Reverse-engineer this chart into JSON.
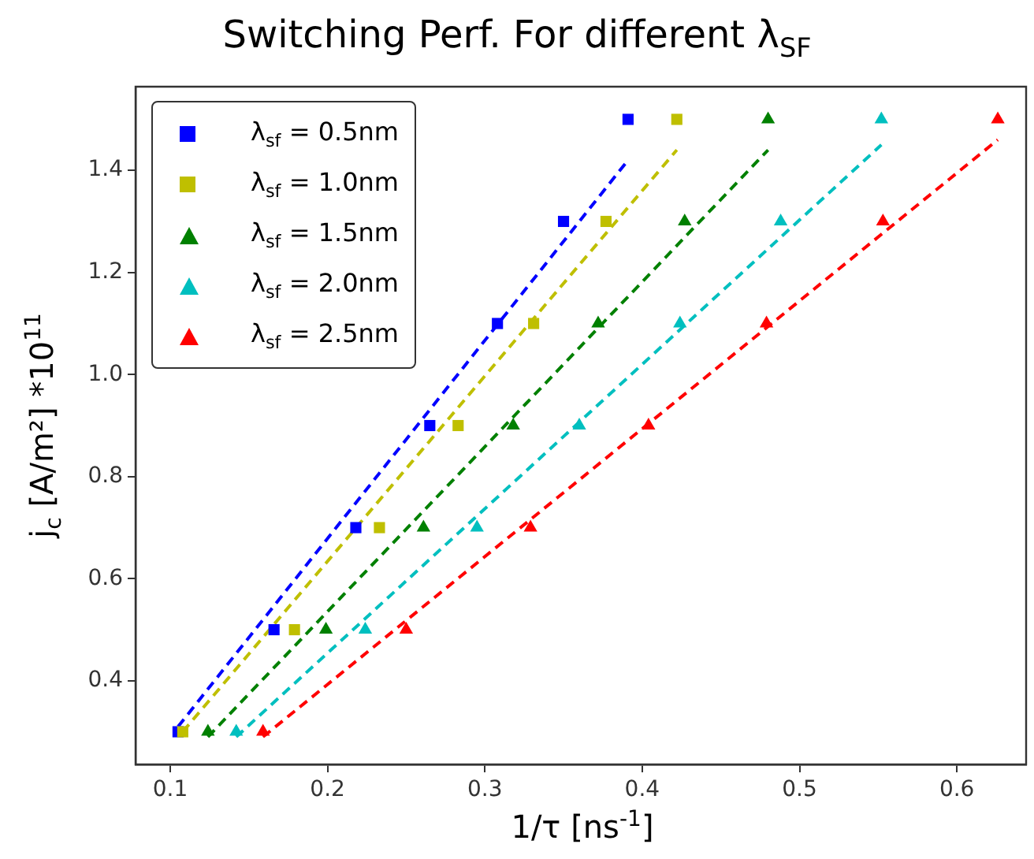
{
  "chart_data": {
    "type": "scatter",
    "title": "Switching Perf. For different λ$_{SF}$",
    "xlabel": "1/τ [ns$^{-1}$]",
    "ylabel": "j$_{c}$ [A/m²] *10$^{11}$",
    "xlim": [
      0.078,
      0.644
    ],
    "ylim": [
      0.236,
      1.564
    ],
    "xticks": [
      0.1,
      0.2,
      0.3,
      0.4,
      0.5,
      0.6
    ],
    "yticks": [
      0.4,
      0.6,
      0.8,
      {
        "value": 1,
        "label": "1.0"
      },
      1.2,
      1.4
    ],
    "grid": false,
    "legend": "top left",
    "series": [
      {
        "name": "λ$_{sf}$ = 0.5nm",
        "color": "#0000ff",
        "marker": "square",
        "x": [
          0.105,
          0.166,
          0.218,
          0.265,
          0.308,
          0.35,
          0.391
        ],
        "values": [
          0.3,
          0.5,
          0.7,
          0.9,
          1.1,
          1.3,
          1.5
        ]
      },
      {
        "name": "λ$_{sf}$ = 1.0nm",
        "color": "#bfbf00",
        "marker": "square",
        "x": [
          0.108,
          0.179,
          0.233,
          0.283,
          0.331,
          0.377,
          0.422
        ],
        "values": [
          0.3,
          0.5,
          0.7,
          0.9,
          1.1,
          1.3,
          1.5
        ]
      },
      {
        "name": "λ$_{sf}$ = 1.5nm",
        "color": "#008000",
        "marker": "triangle",
        "x": [
          0.124,
          0.199,
          0.261,
          0.318,
          0.372,
          0.427,
          0.48
        ],
        "values": [
          0.3,
          0.5,
          0.7,
          0.9,
          1.1,
          1.3,
          1.5
        ]
      },
      {
        "name": "λ$_{sf}$ = 2.0nm",
        "color": "#00bfbf",
        "marker": "triangle",
        "x": [
          0.142,
          0.224,
          0.295,
          0.36,
          0.424,
          0.488,
          0.552
        ],
        "values": [
          0.3,
          0.5,
          0.7,
          0.9,
          1.1,
          1.3,
          1.5
        ]
      },
      {
        "name": "λ$_{sf}$ = 2.5nm",
        "color": "#ff0000",
        "marker": "triangle",
        "x": [
          0.159,
          0.25,
          0.329,
          0.404,
          0.479,
          0.553,
          0.626
        ],
        "values": [
          0.3,
          0.5,
          0.7,
          0.9,
          1.1,
          1.3,
          1.5
        ]
      },
      {
        "type": "line",
        "color": "#0000ff",
        "line_style": "dashed",
        "marker": "none",
        "x": [
          0.105,
          0.391
        ],
        "values": [
          0.31,
          1.42
        ]
      },
      {
        "type": "line",
        "color": "#bfbf00",
        "line_style": "dashed",
        "marker": "none",
        "x": [
          0.108,
          0.422
        ],
        "values": [
          0.3,
          1.44
        ]
      },
      {
        "type": "line",
        "color": "#008000",
        "line_style": "dashed",
        "marker": "none",
        "x": [
          0.124,
          0.48
        ],
        "values": [
          0.29,
          1.44
        ]
      },
      {
        "type": "line",
        "color": "#00bfbf",
        "line_style": "dashed",
        "marker": "none",
        "x": [
          0.142,
          0.552
        ],
        "values": [
          0.29,
          1.45
        ]
      },
      {
        "type": "line",
        "color": "#ff0000",
        "line_style": "dashed",
        "marker": "none",
        "x": [
          0.159,
          0.626
        ],
        "values": [
          0.29,
          1.46
        ]
      }
    ]
  }
}
